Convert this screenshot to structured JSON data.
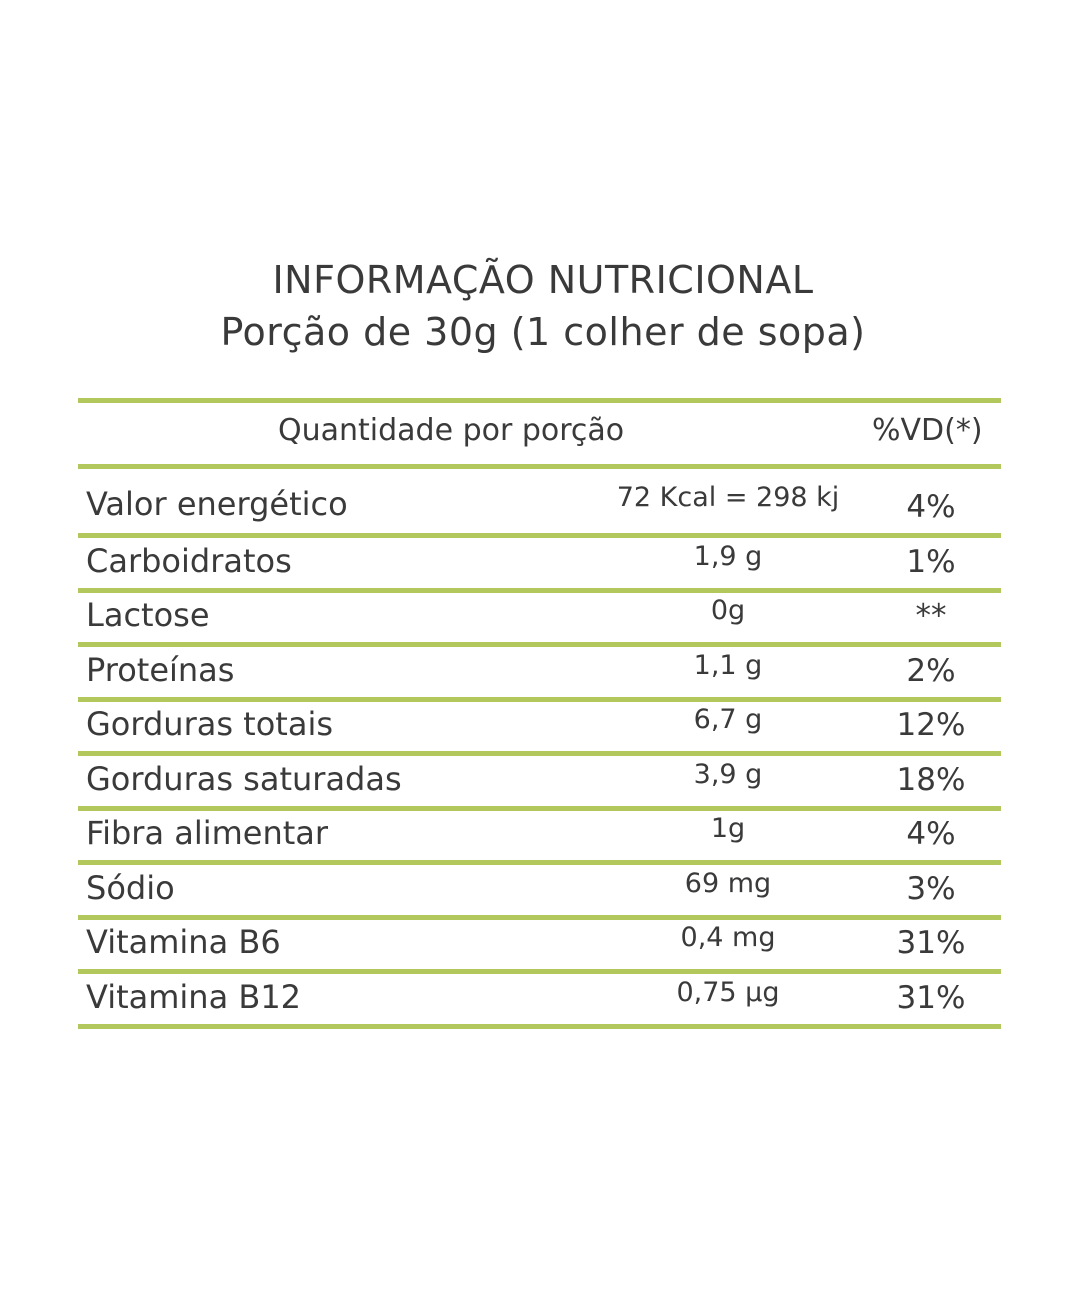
{
  "title": {
    "line1": "INFORMAÇÃO NUTRICIONAL",
    "line2": "Porção de 30g (1 colher de sopa)"
  },
  "header": {
    "quantity_label": "Quantidade por porção",
    "dv_label": "%VD(*)"
  },
  "rows": [
    {
      "name": "Valor energético",
      "amount": "72 Kcal = 298 kj",
      "dv": "4%"
    },
    {
      "name": "Carboidratos",
      "amount": "1,9 g",
      "dv": "1%"
    },
    {
      "name": "Lactose",
      "amount": "0g",
      "dv": "**"
    },
    {
      "name": "Proteínas",
      "amount": "1,1 g",
      "dv": "2%"
    },
    {
      "name": "Gorduras totais",
      "amount": "6,7 g",
      "dv": "12%"
    },
    {
      "name": "Gorduras saturadas",
      "amount": "3,9 g",
      "dv": "18%"
    },
    {
      "name": "Fibra alimentar",
      "amount": "1g",
      "dv": "4%"
    },
    {
      "name": "Sódio",
      "amount": "69 mg",
      "dv": "3%"
    },
    {
      "name": "Vitamina B6",
      "amount": "0,4 mg",
      "dv": "31%"
    },
    {
      "name": "Vitamina B12",
      "amount": "0,75 µg",
      "dv": "31%"
    }
  ],
  "colors": {
    "rule": "#b2c85c",
    "text": "#3a3a3a"
  }
}
